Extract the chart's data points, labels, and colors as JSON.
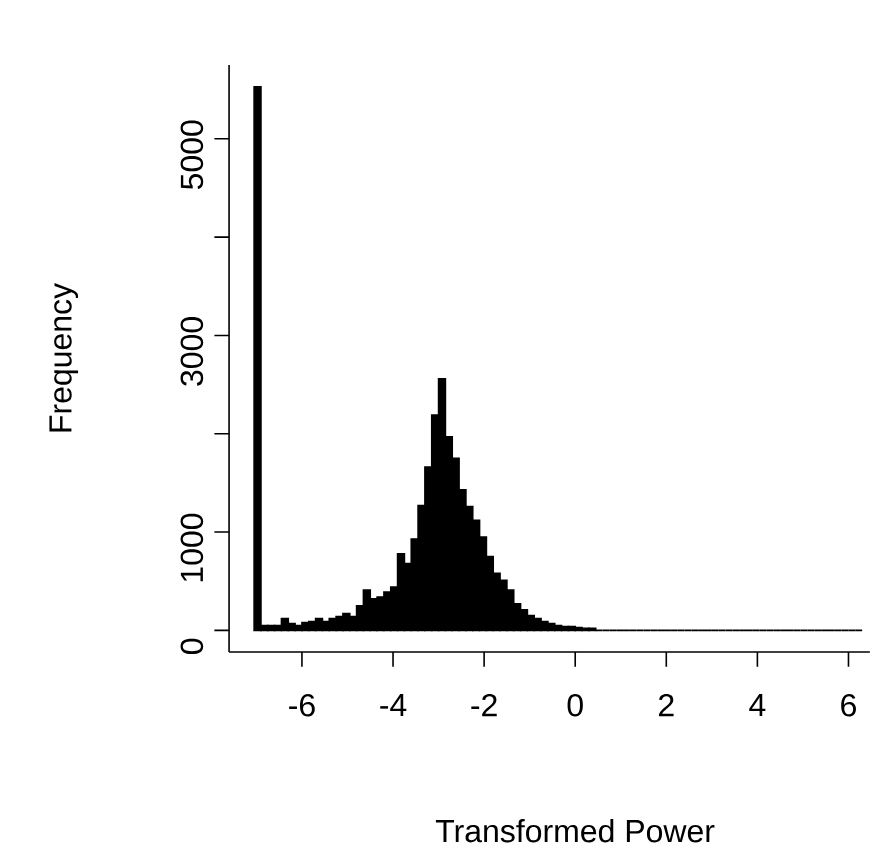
{
  "chart_data": {
    "type": "histogram",
    "xlabel": "Transformed Power",
    "ylabel": "Frequency",
    "bins": [
      -7.05,
      -6.9,
      -6.75,
      -6.6,
      -6.45,
      -6.3,
      -6.15,
      -6,
      -5.85,
      -5.7,
      -5.55,
      -5.4,
      -5.25,
      -5.1,
      -4.95,
      -4.8,
      -4.65,
      -4.5,
      -4.35,
      -4.2,
      -4.05,
      -3.9,
      -3.75,
      -3.6,
      -3.45,
      -3.3,
      -3.15,
      -3,
      -2.85,
      -2.7,
      -2.55,
      -2.4,
      -2.25,
      -2.1,
      -1.95,
      -1.8,
      -1.65,
      -1.5,
      -1.35,
      -1.2,
      -1.05,
      -0.9,
      -0.75,
      -0.6,
      -0.45,
      -0.3,
      -0.15,
      0,
      0.15,
      0.3,
      0.45,
      0.6,
      0.75,
      0.9,
      1.05,
      1.2,
      1.35,
      1.5,
      1.65,
      1.8,
      1.95,
      2.1,
      2.25,
      2.4,
      2.55,
      2.7,
      2.85,
      3,
      3.15,
      3.3,
      3.45,
      3.6,
      3.75,
      3.9,
      4.05,
      4.2,
      4.35,
      4.5,
      4.65,
      4.8,
      4.95,
      5.1,
      5.25,
      5.4,
      5.55,
      5.7,
      5.85,
      6,
      6.15,
      6.3
    ],
    "values": [
      5530,
      50,
      50,
      50,
      120,
      70,
      50,
      80,
      90,
      120,
      90,
      120,
      140,
      170,
      140,
      250,
      410,
      320,
      340,
      390,
      440,
      780,
      680,
      930,
      1270,
      1660,
      2190,
      2560,
      1970,
      1750,
      1430,
      1260,
      1120,
      950,
      750,
      580,
      510,
      410,
      270,
      210,
      150,
      120,
      90,
      70,
      50,
      40,
      40,
      30,
      20,
      20,
      0,
      0,
      0,
      0,
      0,
      0,
      0,
      0,
      0,
      0,
      0,
      0,
      0,
      0,
      0,
      0,
      0,
      0,
      0,
      0,
      0,
      0,
      0,
      0,
      0,
      0,
      0,
      0,
      0,
      0,
      0,
      0,
      0,
      0,
      0,
      0,
      0,
      0,
      0
    ],
    "color": "#000000",
    "xlim": [
      -7.6,
      6.47
    ],
    "ylim": [
      -220,
      5750
    ],
    "xticks": [
      -6,
      -4,
      -2,
      0,
      2,
      4,
      6
    ],
    "yticks": [
      0,
      1000,
      {
        "value": 2000,
        "label": null
      },
      3000,
      {
        "value": 4000,
        "label": null
      },
      5000
    ],
    "grid": false
  }
}
